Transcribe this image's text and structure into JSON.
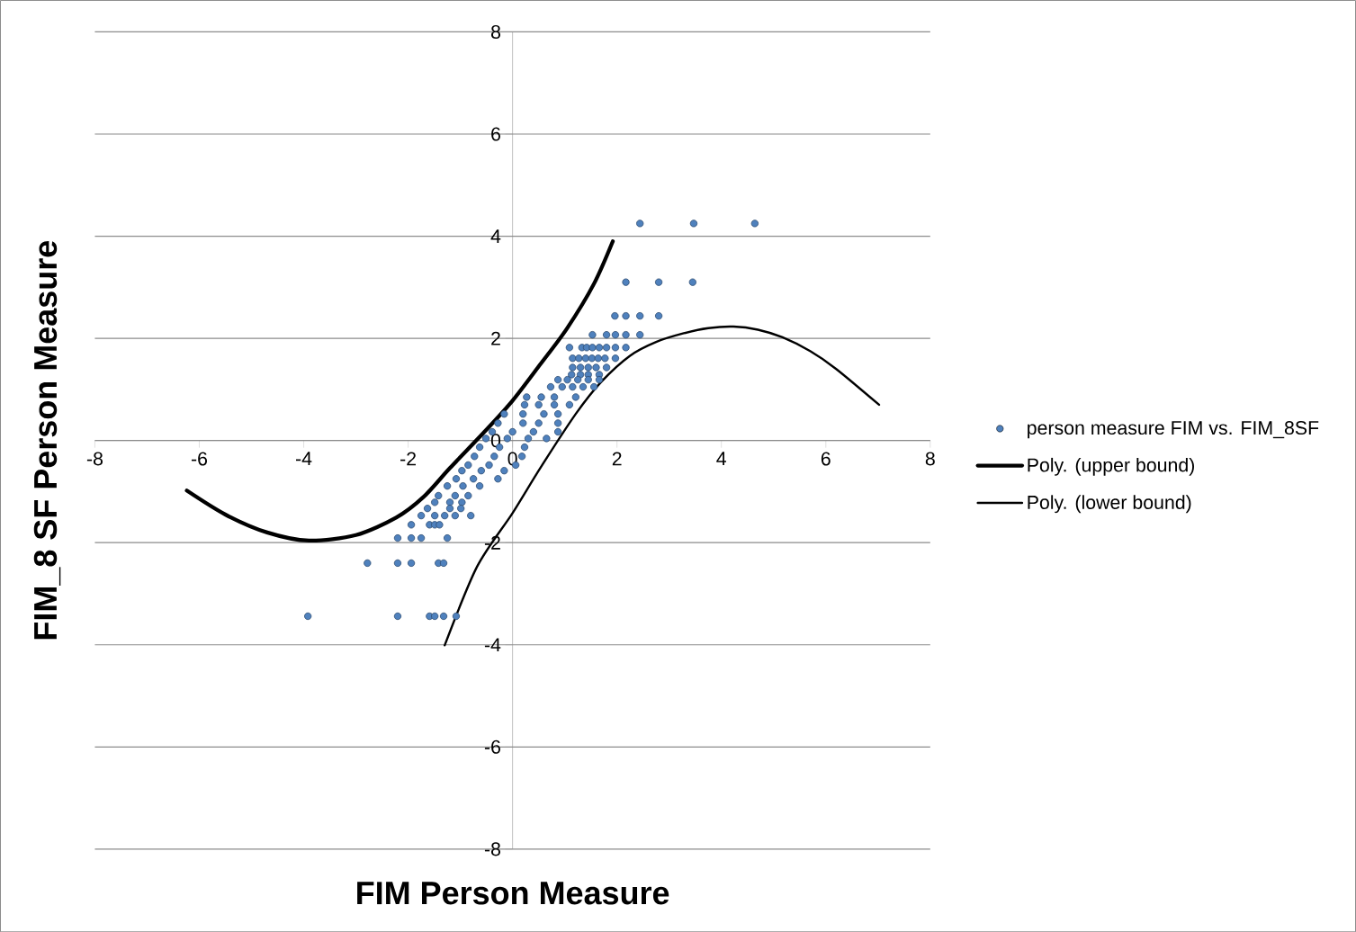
{
  "chart_data": {
    "type": "scatter",
    "xlabel": "FIM Person Measure",
    "ylabel": "FIM_8 SF Person Measure",
    "xlim": [
      -8,
      8
    ],
    "ylim": [
      -8,
      8
    ],
    "xticks": [
      -8,
      -6,
      -4,
      -2,
      0,
      2,
      4,
      6,
      8
    ],
    "yticks": [
      -8,
      -6,
      -4,
      -2,
      0,
      2,
      4,
      6,
      8
    ],
    "grid": "y",
    "legend": "right",
    "series": [
      {
        "name": "person measure FIM vs. FIM_8SF",
        "marker": "circle",
        "color": "#4f81bd",
        "x": [
          2.44,
          3.47,
          4.64,
          2.17,
          2.8,
          3.45,
          1.96,
          2.17,
          2.44,
          2.8,
          1.53,
          1.8,
          1.97,
          2.17,
          2.44,
          1.09,
          1.33,
          1.42,
          1.53,
          1.66,
          1.8,
          1.97,
          2.17,
          1.15,
          1.27,
          1.4,
          1.52,
          1.64,
          1.77,
          1.97,
          1.15,
          1.3,
          1.45,
          1.6,
          1.8,
          1.13,
          1.3,
          1.45,
          1.66,
          0.87,
          1.05,
          1.25,
          1.45,
          1.66,
          0.73,
          0.95,
          1.15,
          1.35,
          1.56,
          0.27,
          0.55,
          0.8,
          1.21,
          0.23,
          0.5,
          0.8,
          1.09,
          -0.16,
          0.2,
          0.6,
          0.87,
          -0.28,
          0.2,
          0.5,
          0.87,
          -0.39,
          0.0,
          0.4,
          0.87,
          -0.51,
          -0.1,
          0.3,
          0.65,
          -0.63,
          -0.25,
          0.23,
          -0.73,
          -0.35,
          0.18,
          -0.85,
          -0.45,
          0.06,
          -0.97,
          -0.6,
          -0.16,
          -1.08,
          -0.75,
          -0.28,
          -1.25,
          -0.95,
          -0.63,
          -1.42,
          -1.1,
          -0.85,
          -1.49,
          -1.2,
          -0.97,
          -1.63,
          -1.2,
          -0.99,
          -1.75,
          -1.49,
          -1.3,
          -1.1,
          -0.8,
          -1.94,
          -1.59,
          -1.49,
          -1.4,
          -2.2,
          -1.94,
          -1.75,
          -1.25,
          -2.78,
          -2.2,
          -1.94,
          -1.42,
          -1.32,
          -3.92,
          -2.2,
          -1.59,
          -1.49,
          -1.32,
          -1.08
        ],
        "values": [
          4.25,
          4.25,
          4.25,
          3.1,
          3.1,
          3.1,
          2.44,
          2.44,
          2.44,
          2.44,
          2.07,
          2.07,
          2.07,
          2.07,
          2.07,
          1.82,
          1.82,
          1.82,
          1.82,
          1.82,
          1.82,
          1.82,
          1.82,
          1.61,
          1.61,
          1.61,
          1.61,
          1.61,
          1.61,
          1.61,
          1.43,
          1.43,
          1.43,
          1.43,
          1.43,
          1.29,
          1.29,
          1.29,
          1.29,
          1.19,
          1.19,
          1.19,
          1.19,
          1.19,
          1.05,
          1.05,
          1.05,
          1.05,
          1.05,
          0.85,
          0.85,
          0.85,
          0.85,
          0.7,
          0.7,
          0.7,
          0.7,
          0.52,
          0.52,
          0.52,
          0.52,
          0.34,
          0.34,
          0.34,
          0.34,
          0.17,
          0.17,
          0.17,
          0.17,
          0.04,
          0.04,
          0.04,
          0.04,
          -0.13,
          -0.13,
          -0.13,
          -0.31,
          -0.31,
          -0.31,
          -0.48,
          -0.48,
          -0.48,
          -0.59,
          -0.59,
          -0.59,
          -0.75,
          -0.75,
          -0.75,
          -0.89,
          -0.89,
          -0.89,
          -1.08,
          -1.08,
          -1.08,
          -1.21,
          -1.21,
          -1.21,
          -1.33,
          -1.33,
          -1.33,
          -1.47,
          -1.47,
          -1.47,
          -1.47,
          -1.47,
          -1.65,
          -1.65,
          -1.65,
          -1.65,
          -1.91,
          -1.91,
          -1.91,
          -1.91,
          -2.4,
          -2.4,
          -2.4,
          -2.4,
          -2.4,
          -3.44,
          -3.44,
          -3.44,
          -3.44,
          -3.44,
          -3.44
        ]
      },
      {
        "name": "Poly. (upper bound)",
        "type": "line",
        "color": "#000000",
        "x": [
          -6.24,
          -5.5,
          -4.7,
          -3.9,
          -3.0,
          -2.23,
          -1.7,
          -1.2,
          -0.51,
          0.0,
          0.53,
          1.04,
          1.56,
          1.92
        ],
        "values": [
          -0.98,
          -1.45,
          -1.8,
          -1.96,
          -1.85,
          -1.51,
          -1.1,
          -0.54,
          0.2,
          0.78,
          1.49,
          2.19,
          3.07,
          3.9
        ]
      },
      {
        "name": "Poly. (lower bound)",
        "type": "line",
        "color": "#000000",
        "x": [
          -1.3,
          -0.68,
          0.0,
          0.53,
          1.21,
          1.7,
          2.25,
          2.75,
          3.28,
          3.75,
          4.23,
          4.7,
          5.17,
          5.7,
          6.2,
          7.02
        ],
        "values": [
          -4.01,
          -2.47,
          -1.42,
          -0.54,
          0.52,
          1.15,
          1.66,
          1.93,
          2.1,
          2.2,
          2.23,
          2.17,
          2.02,
          1.75,
          1.4,
          0.7
        ]
      }
    ]
  }
}
